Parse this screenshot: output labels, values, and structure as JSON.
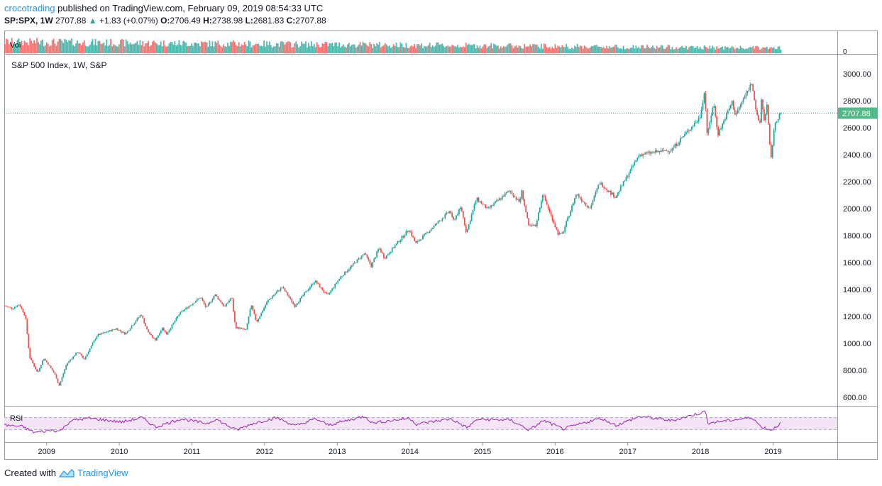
{
  "header": {
    "author": "crocotrading",
    "published": "published on TradingView.com, February 09, 2019 08:54:33 UTC",
    "symbol": "SP:SPX, 1W",
    "last": "2707.88",
    "change": "+1.83 (+0.07%)",
    "o_label": "O:",
    "o_value": "2706.49",
    "h_label": "H:",
    "h_value": "2738.98",
    "l_label": "L:",
    "l_value": "2681.83",
    "c_label": "C:",
    "c_value": "2707.88"
  },
  "footer": {
    "created": "Created with",
    "brand": "TradingView"
  },
  "colors": {
    "up": "#26a69a",
    "down": "#ef5350",
    "up_bright": "#53b987",
    "rsi": "#9c27b0",
    "rsi_band": "#f3e5f5",
    "grid": "#d1d4dc"
  },
  "chart_data": {
    "type": "candlestick",
    "title": "S&P 500 Index, 1W, S&P",
    "panes": [
      "Vol",
      "price",
      "RSI"
    ],
    "volume_label": "Vol",
    "volume_axis_label": "0",
    "rsi_label": "RSI",
    "price_axis": {
      "ticks": [
        "600.00",
        "800.00",
        "1000.00",
        "1200.00",
        "1400.00",
        "1600.00",
        "1800.00",
        "2000.00",
        "2200.00",
        "2400.00",
        "2600.00",
        "2800.00",
        "3000.00"
      ],
      "tick_values": [
        600,
        800,
        1000,
        1200,
        1400,
        1600,
        1800,
        2000,
        2200,
        2400,
        2600,
        2800,
        3000
      ],
      "ylim": [
        530,
        3160
      ]
    },
    "time_axis": [
      "2009",
      "2010",
      "2011",
      "2012",
      "2013",
      "2014",
      "2015",
      "2016",
      "2017",
      "2018",
      "2019"
    ],
    "time_range": [
      "2008-06",
      "2019-02"
    ],
    "last_price": 2707.88,
    "last_price_label": "2707.88",
    "price_path": [
      [
        "2008-06-01",
        1280
      ],
      [
        "2008-07-15",
        1260
      ],
      [
        "2008-08-20",
        1290
      ],
      [
        "2008-09-20",
        1200
      ],
      [
        "2008-10-10",
        900
      ],
      [
        "2008-11-20",
        780
      ],
      [
        "2008-12-20",
        890
      ],
      [
        "2009-01-20",
        830
      ],
      [
        "2009-02-20",
        760
      ],
      [
        "2009-03-06",
        683
      ],
      [
        "2009-04-15",
        850
      ],
      [
        "2009-06-10",
        940
      ],
      [
        "2009-07-10",
        880
      ],
      [
        "2009-09-15",
        1060
      ],
      [
        "2009-12-20",
        1110
      ],
      [
        "2010-02-05",
        1070
      ],
      [
        "2010-04-23",
        1217
      ],
      [
        "2010-05-25",
        1090
      ],
      [
        "2010-07-02",
        1022
      ],
      [
        "2010-08-10",
        1120
      ],
      [
        "2010-08-27",
        1064
      ],
      [
        "2010-11-05",
        1225
      ],
      [
        "2011-02-18",
        1343
      ],
      [
        "2011-03-16",
        1260
      ],
      [
        "2011-04-29",
        1363
      ],
      [
        "2011-06-17",
        1271
      ],
      [
        "2011-07-22",
        1345
      ],
      [
        "2011-08-10",
        1120
      ],
      [
        "2011-10-03",
        1099
      ],
      [
        "2011-10-28",
        1285
      ],
      [
        "2011-11-25",
        1158
      ],
      [
        "2012-01-20",
        1315
      ],
      [
        "2012-04-02",
        1419
      ],
      [
        "2012-06-04",
        1278
      ],
      [
        "2012-09-14",
        1465
      ],
      [
        "2012-11-16",
        1353
      ],
      [
        "2013-01-20",
        1490
      ],
      [
        "2013-05-20",
        1669
      ],
      [
        "2013-06-24",
        1573
      ],
      [
        "2013-08-02",
        1709
      ],
      [
        "2013-08-30",
        1633
      ],
      [
        "2013-12-31",
        1848
      ],
      [
        "2014-02-03",
        1740
      ],
      [
        "2014-07-25",
        1985
      ],
      [
        "2014-08-08",
        1905
      ],
      [
        "2014-09-19",
        2011
      ],
      [
        "2014-10-15",
        1821
      ],
      [
        "2014-12-05",
        2075
      ],
      [
        "2015-01-30",
        1995
      ],
      [
        "2015-05-20",
        2134
      ],
      [
        "2015-07-08",
        2046
      ],
      [
        "2015-07-20",
        2128
      ],
      [
        "2015-08-24",
        1867
      ],
      [
        "2015-09-29",
        1872
      ],
      [
        "2015-11-03",
        2109
      ],
      [
        "2016-01-20",
        1812
      ],
      [
        "2016-02-11",
        1810
      ],
      [
        "2016-04-20",
        2111
      ],
      [
        "2016-06-27",
        2000
      ],
      [
        "2016-08-15",
        2193
      ],
      [
        "2016-11-04",
        2085
      ],
      [
        "2017-03-01",
        2400
      ],
      [
        "2017-08-11",
        2437
      ],
      [
        "2017-12-31",
        2673
      ],
      [
        "2018-01-26",
        2872
      ],
      [
        "2018-02-09",
        2532
      ],
      [
        "2018-03-09",
        2786
      ],
      [
        "2018-04-02",
        2553
      ],
      [
        "2018-06-12",
        2790
      ],
      [
        "2018-06-28",
        2692
      ],
      [
        "2018-09-21",
        2940
      ],
      [
        "2018-10-12",
        2710
      ],
      [
        "2018-10-29",
        2603
      ],
      [
        "2018-11-07",
        2815
      ],
      [
        "2018-11-23",
        2632
      ],
      [
        "2018-12-03",
        2800
      ],
      [
        "2018-12-24",
        2346
      ],
      [
        "2019-01-10",
        2600
      ],
      [
        "2019-02-08",
        2708
      ]
    ],
    "rsi_band": [
      30,
      70
    ],
    "rsi_path": [
      [
        "2008-06-01",
        45
      ],
      [
        "2008-09-01",
        40
      ],
      [
        "2008-11-01",
        20
      ],
      [
        "2009-02-01",
        28
      ],
      [
        "2009-03-06",
        24
      ],
      [
        "2009-05-01",
        60
      ],
      [
        "2009-08-01",
        68
      ],
      [
        "2010-01-15",
        55
      ],
      [
        "2010-04-23",
        70
      ],
      [
        "2010-07-02",
        38
      ],
      [
        "2010-11-05",
        66
      ],
      [
        "2011-03-16",
        50
      ],
      [
        "2011-04-29",
        65
      ],
      [
        "2011-08-10",
        28
      ],
      [
        "2011-11-01",
        50
      ],
      [
        "2012-03-01",
        70
      ],
      [
        "2012-06-04",
        42
      ],
      [
        "2012-09-14",
        66
      ],
      [
        "2012-11-16",
        45
      ],
      [
        "2013-05-20",
        75
      ],
      [
        "2013-06-24",
        52
      ],
      [
        "2013-12-31",
        68
      ],
      [
        "2014-02-03",
        48
      ],
      [
        "2014-07-25",
        66
      ],
      [
        "2014-10-15",
        36
      ],
      [
        "2014-12-05",
        64
      ],
      [
        "2015-05-20",
        62
      ],
      [
        "2015-08-24",
        28
      ],
      [
        "2015-11-03",
        60
      ],
      [
        "2016-02-11",
        32
      ],
      [
        "2016-08-15",
        68
      ],
      [
        "2016-11-04",
        44
      ],
      [
        "2017-03-01",
        74
      ],
      [
        "2017-08-11",
        60
      ],
      [
        "2018-01-26",
        90
      ],
      [
        "2018-02-09",
        52
      ],
      [
        "2018-06-12",
        62
      ],
      [
        "2018-09-21",
        70
      ],
      [
        "2018-10-29",
        40
      ],
      [
        "2018-12-24",
        28
      ],
      [
        "2019-02-08",
        52
      ]
    ]
  }
}
